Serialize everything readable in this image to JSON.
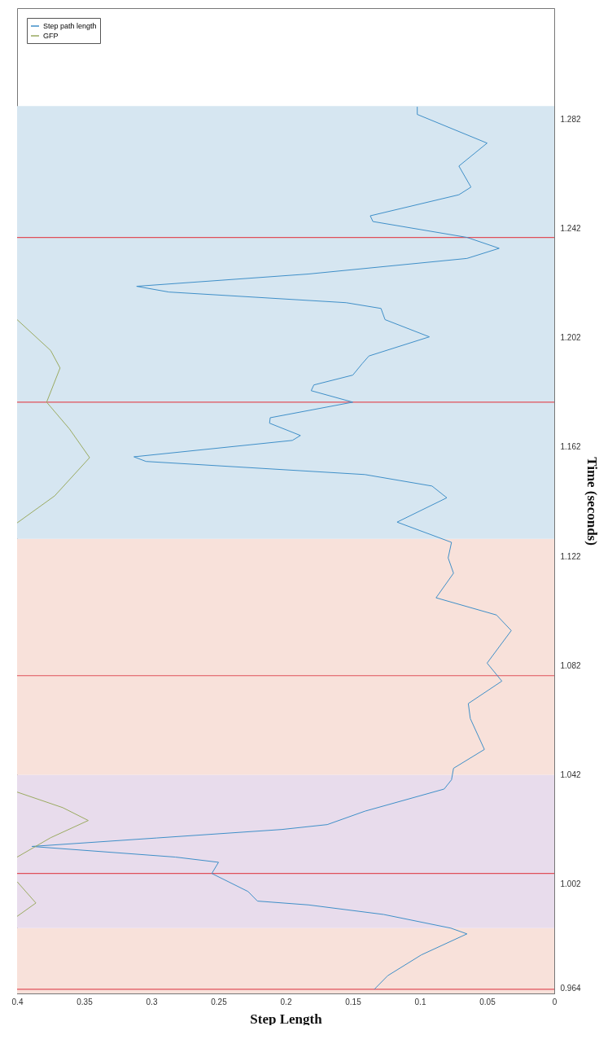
{
  "chart_data": {
    "type": "line",
    "xlabel": "Step Length",
    "ylabel": "Time (seconds)",
    "xlim": [
      0.4,
      0
    ],
    "xticks": [
      0,
      0.05,
      0.1,
      0.15,
      0.2,
      0.25,
      0.3,
      0.35,
      0.4
    ],
    "ylim": [
      0.962,
      1.3226
    ],
    "yticks": [
      0.964,
      1.002,
      1.042,
      1.082,
      1.122,
      1.162,
      1.202,
      1.242,
      1.282
    ],
    "legend": "top left",
    "grid": false,
    "series": [
      {
        "name": "Step path length",
        "color": "#3f8fc8",
        "x": [
          0.134,
          0.124,
          0.099,
          0.065,
          0.077,
          0.127,
          0.183,
          0.221,
          0.228,
          0.255,
          0.25,
          0.282,
          0.389,
          0.296,
          0.203,
          0.169,
          0.141,
          0.082,
          0.0765,
          0.075,
          0.052,
          0.0625,
          0.064,
          0.039,
          0.05,
          0.032,
          0.043,
          0.088,
          0.075,
          0.079,
          0.0765,
          0.117,
          0.08,
          0.091,
          0.141,
          0.304,
          0.313,
          0.195,
          0.189,
          0.212,
          0.2115,
          0.15,
          0.181,
          0.179,
          0.15,
          0.143,
          0.138,
          0.093,
          0.126,
          0.129,
          0.155,
          0.287,
          0.311,
          0.183,
          0.065,
          0.041,
          0.065,
          0.135,
          0.137,
          0.071,
          0.062,
          0.071,
          0.05,
          0.102,
          0.102
        ],
        "values": [
          0.9635,
          0.9685,
          0.9761,
          0.9838,
          0.9859,
          0.9909,
          0.9944,
          0.9958,
          0.9993,
          1.0059,
          1.01,
          1.0119,
          1.0158,
          1.0189,
          1.022,
          1.0238,
          1.0287,
          1.0368,
          1.0402,
          1.0444,
          1.0513,
          1.0626,
          1.0681,
          1.0763,
          1.0829,
          1.0948,
          1.1005,
          1.1068,
          1.1158,
          1.1214,
          1.1271,
          1.1345,
          1.1434,
          1.1477,
          1.1519,
          1.1567,
          1.1584,
          1.1644,
          1.1662,
          1.1707,
          1.1727,
          1.1784,
          1.1826,
          1.1847,
          1.1883,
          1.1925,
          1.1953,
          1.2023,
          1.2086,
          1.2127,
          1.2148,
          1.2187,
          1.2208,
          1.2253,
          1.231,
          1.2347,
          1.2387,
          1.2445,
          1.2466,
          1.2543,
          1.2571,
          1.2648,
          1.2732,
          1.2837,
          1.2865
        ]
      },
      {
        "name": "GFP",
        "color": "#9aaa60",
        "x": [
          0.4,
          0.386,
          0.4,
          null,
          0.4,
          0.375,
          0.347,
          0.366,
          0.4,
          null,
          0.4,
          0.372,
          0.346,
          0.361,
          0.378,
          0.368,
          0.375,
          0.4
        ],
        "values": [
          0.9902,
          0.9951,
          1.0029,
          null,
          1.0119,
          1.019,
          1.0253,
          1.03,
          1.0357,
          null,
          1.1342,
          1.1441,
          1.1581,
          1.1686,
          1.1784,
          1.1909,
          1.1973,
          1.2086
        ]
      }
    ],
    "bands": [
      {
        "axis": "y",
        "from": 0.962,
        "to": 0.9859,
        "color": "#f8e1da"
      },
      {
        "axis": "y",
        "from": 0.9859,
        "to": 1.042,
        "color": "#e8dcec"
      },
      {
        "axis": "y",
        "from": 1.042,
        "to": 1.1284,
        "color": "#f8e1da"
      },
      {
        "axis": "y",
        "from": 1.1284,
        "to": 1.2868,
        "color": "#d6e6f1"
      }
    ],
    "ref_lines": [
      {
        "axis": "y",
        "value": 0.9635,
        "color": "#e0505a"
      },
      {
        "axis": "y",
        "value": 1.0059,
        "color": "#e0505a"
      },
      {
        "axis": "y",
        "value": 1.0783,
        "color": "#e0505a"
      },
      {
        "axis": "y",
        "value": 1.1784,
        "color": "#e0505a"
      },
      {
        "axis": "y",
        "value": 1.2387,
        "color": "#e0505a"
      }
    ]
  }
}
